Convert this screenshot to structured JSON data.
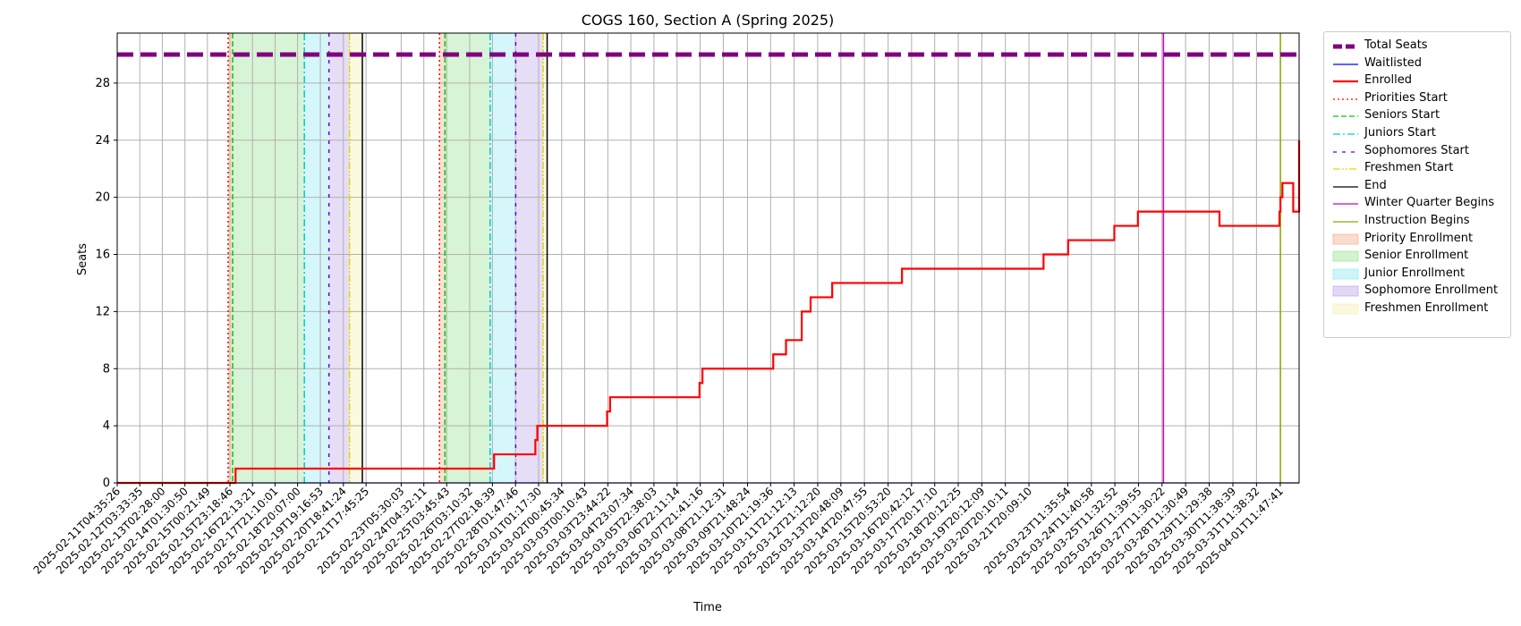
{
  "chart_data": {
    "type": "line",
    "title": "COGS 160, Section A (Spring 2025)",
    "xlabel": "Time",
    "ylabel": "Seats",
    "x_start": "2025-02-11T04:35:26",
    "x_end": "2025-04-02T07:00:00",
    "ylim": [
      0,
      31.5
    ],
    "yticks": [
      "0",
      "4",
      "8",
      "12",
      "16",
      "20",
      "24",
      "28"
    ],
    "xtick_labels": [
      "2025-02-11T04:35:26",
      "2025-02-12T03:33:35",
      "2025-02-13T02:28:00",
      "2025-02-14T01:30:50",
      "2025-02-15T00:21:49",
      "2025-02-15T23:18:46",
      "2025-02-16T22:13:21",
      "2025-02-17T21:10:01",
      "2025-02-18T20:07:00",
      "2025-02-19T19:16:53",
      "2025-02-20T18:41:24",
      "2025-02-21T17:45:25",
      "2025-02-23T05:30:03",
      "2025-02-24T04:32:11",
      "2025-02-25T03:45:43",
      "2025-02-26T03:10:32",
      "2025-02-27T02:18:39",
      "2025-02-28T01:47:46",
      "2025-03-01T01:17:30",
      "2025-03-02T00:45:34",
      "2025-03-03T00:10:43",
      "2025-03-03T23:44:22",
      "2025-03-04T23:07:34",
      "2025-03-05T22:38:03",
      "2025-03-06T22:11:14",
      "2025-03-07T21:41:16",
      "2025-03-08T21:12:31",
      "2025-03-09T21:48:24",
      "2025-03-10T21:19:36",
      "2025-03-11T21:12:13",
      "2025-03-12T21:12:20",
      "2025-03-13T20:48:09",
      "2025-03-14T20:47:55",
      "2025-03-15T20:53:20",
      "2025-03-16T20:42:12",
      "2025-03-17T20:17:10",
      "2025-03-18T20:12:25",
      "2025-03-19T20:12:09",
      "2025-03-20T20:10:11",
      "2025-03-21T20:09:10",
      "2025-03-23T11:35:54",
      "2025-03-24T11:40:58",
      "2025-03-25T11:32:52",
      "2025-03-26T11:39:55",
      "2025-03-27T11:30:22",
      "2025-03-28T11:30:49",
      "2025-03-29T11:29:38",
      "2025-03-30T11:38:39",
      "2025-03-31T11:38:32",
      "2025-04-01T11:47:41"
    ],
    "total_seats": 30,
    "series": [
      {
        "name": "Total Seats",
        "color": "#800080",
        "style": "dashed-thick",
        "values": [
          [
            "2025-02-11T04:35:26",
            30
          ],
          [
            "2025-04-02T07:00:00",
            30
          ]
        ]
      },
      {
        "name": "Waitlisted",
        "color": "#0000ff",
        "style": "solid-thin",
        "values": [
          [
            "2025-02-11T04:35:26",
            0
          ],
          [
            "2025-04-02T07:00:00",
            0
          ]
        ]
      },
      {
        "name": "Enrolled",
        "color": "#ff0000",
        "style": "step",
        "values": [
          [
            "2025-02-11T04:35:26",
            0
          ],
          [
            "2025-02-16T05:00:00",
            1
          ],
          [
            "2025-02-27T04:00:00",
            2
          ],
          [
            "2025-02-28T22:00:00",
            3
          ],
          [
            "2025-03-01T00:00:00",
            4
          ],
          [
            "2025-03-03T23:00:00",
            5
          ],
          [
            "2025-03-04T02:00:00",
            6
          ],
          [
            "2025-03-07T21:00:00",
            7
          ],
          [
            "2025-03-08T00:00:00",
            8
          ],
          [
            "2025-03-11T00:00:00",
            9
          ],
          [
            "2025-03-11T13:00:00",
            10
          ],
          [
            "2025-03-12T05:00:00",
            12
          ],
          [
            "2025-03-12T14:00:00",
            13
          ],
          [
            "2025-03-13T12:00:00",
            14
          ],
          [
            "2025-03-16T11:00:00",
            15
          ],
          [
            "2025-03-22T11:00:00",
            16
          ],
          [
            "2025-03-23T12:00:00",
            17
          ],
          [
            "2025-03-25T11:00:00",
            18
          ],
          [
            "2025-03-26T11:00:00",
            19
          ],
          [
            "2025-03-29T22:00:00",
            18
          ],
          [
            "2025-04-01T11:00:00",
            19
          ],
          [
            "2025-04-01T12:00:00",
            20
          ],
          [
            "2025-04-01T14:00:00",
            21
          ],
          [
            "2025-04-02T01:00:00",
            19
          ],
          [
            "2025-04-02T10:00:00",
            20
          ],
          [
            "2025-04-02T16:00:00",
            19
          ],
          [
            "2025-04-02T21:00:00",
            20
          ],
          [
            "2025-04-03T05:00:00",
            21
          ],
          [
            "2025-04-03T07:00:00",
            23
          ],
          [
            "2025-04-04T04:00:00",
            24
          ]
        ]
      }
    ],
    "event_lines": [
      {
        "name": "Priorities Start",
        "color": "#ff0000",
        "style": "dotted",
        "at": [
          "2025-02-15T21:30:00",
          "2025-02-24T20:30:00"
        ]
      },
      {
        "name": "Seniors Start",
        "color": "#00cc00",
        "style": "dashed",
        "at": [
          "2025-02-16T02:00:00",
          "2025-02-25T02:00:00"
        ]
      },
      {
        "name": "Juniors Start",
        "color": "#00cccc",
        "style": "dashdot",
        "at": [
          "2025-02-19T03:00:00",
          "2025-02-27T00:00:00"
        ]
      },
      {
        "name": "Sophomores Start",
        "color": "#6600cc",
        "style": "loosedash",
        "at": [
          "2025-02-20T04:00:00",
          "2025-02-28T02:00:00"
        ]
      },
      {
        "name": "Freshmen Start",
        "color": "#e6d800",
        "style": "dashdotdot",
        "at": [
          "2025-02-21T01:00:00",
          "2025-02-29T06:00:00"
        ]
      },
      {
        "name": "End",
        "color": "#000000",
        "style": "solid",
        "at": [
          "2025-02-21T14:00:00",
          "2025-02-29T10:00:00"
        ]
      },
      {
        "name": "Winter Quarter Begins",
        "color": "#cc00cc",
        "style": "solid",
        "at": [
          "2025-03-27T13:00:00"
        ]
      },
      {
        "name": "Instruction Begins",
        "color": "#88aa00",
        "style": "solid",
        "at": [
          "2025-04-01T12:00:00"
        ]
      }
    ],
    "shaded_spans": [
      {
        "name": "Priority Enrollment",
        "color": "#f4a582",
        "spans": [
          [
            "2025-02-15T21:30:00",
            "2025-02-16T02:00:00"
          ],
          [
            "2025-02-24T20:30:00",
            "2025-02-25T02:00:00"
          ]
        ]
      },
      {
        "name": "Senior Enrollment",
        "color": "#90e08a",
        "spans": [
          [
            "2025-02-16T02:00:00",
            "2025-02-19T03:00:00"
          ],
          [
            "2025-02-25T02:00:00",
            "2025-02-27T00:00:00"
          ]
        ]
      },
      {
        "name": "Junior Enrollment",
        "color": "#88e6f0",
        "spans": [
          [
            "2025-02-19T03:00:00",
            "2025-02-20T04:00:00"
          ],
          [
            "2025-02-27T00:00:00",
            "2025-02-28T02:00:00"
          ]
        ]
      },
      {
        "name": "Sophomore Enrollment",
        "color": "#b79de8",
        "spans": [
          [
            "2025-02-20T04:00:00",
            "2025-02-21T01:00:00"
          ],
          [
            "2025-02-28T02:00:00",
            "2025-02-29T06:00:00"
          ]
        ]
      },
      {
        "name": "Freshmen Enrollment",
        "color": "#f2f0a8",
        "spans": [
          [
            "2025-02-21T01:00:00",
            "2025-02-21T14:00:00"
          ],
          [
            "2025-02-29T06:00:00",
            "2025-02-29T10:00:00"
          ]
        ]
      }
    ],
    "grid": true,
    "legend_position": "outside-right",
    "legend": [
      {
        "label": "Total Seats",
        "kind": "line",
        "color": "#800080",
        "style": "dashed-thick"
      },
      {
        "label": "Waitlisted",
        "kind": "line",
        "color": "#0000ff",
        "style": "solid-thin"
      },
      {
        "label": "Enrolled",
        "kind": "line",
        "color": "#ff0000",
        "style": "solid-thick"
      },
      {
        "label": "Priorities Start",
        "kind": "line",
        "color": "#ff0000",
        "style": "dotted"
      },
      {
        "label": "Seniors Start",
        "kind": "line",
        "color": "#00cc00",
        "style": "dashed"
      },
      {
        "label": "Juniors Start",
        "kind": "line",
        "color": "#00cccc",
        "style": "dashdot"
      },
      {
        "label": "Sophomores Start",
        "kind": "line",
        "color": "#6600cc",
        "style": "loosedash"
      },
      {
        "label": "Freshmen Start",
        "kind": "line",
        "color": "#e6d800",
        "style": "dashdotdot"
      },
      {
        "label": "End",
        "kind": "line",
        "color": "#000000",
        "style": "solid"
      },
      {
        "label": "Winter Quarter Begins",
        "kind": "line",
        "color": "#cc00cc",
        "style": "solid"
      },
      {
        "label": "Instruction Begins",
        "kind": "line",
        "color": "#88aa00",
        "style": "solid"
      },
      {
        "label": "Priority Enrollment",
        "kind": "patch",
        "color": "#f4a582"
      },
      {
        "label": "Senior Enrollment",
        "kind": "patch",
        "color": "#90e08a"
      },
      {
        "label": "Junior Enrollment",
        "kind": "patch",
        "color": "#88e6f0"
      },
      {
        "label": "Sophomore Enrollment",
        "kind": "patch",
        "color": "#b79de8"
      },
      {
        "label": "Freshmen Enrollment",
        "kind": "patch",
        "color": "#f2f0a8"
      }
    ]
  }
}
